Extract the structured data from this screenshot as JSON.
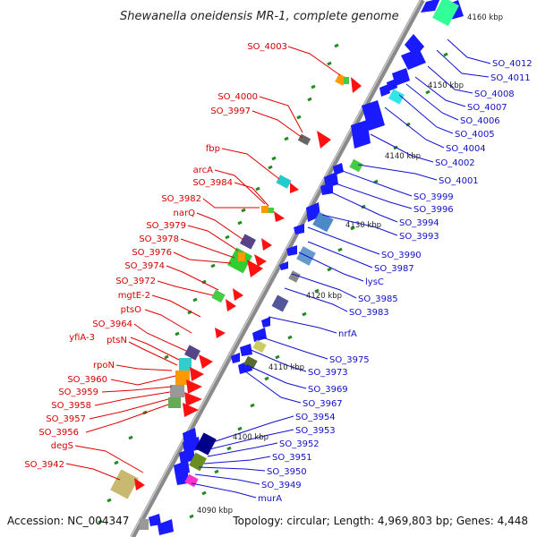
{
  "header": {
    "title": "Shewanella oneidensis MR-1, complete genome"
  },
  "footer": {
    "accession": "Accession: NC_004347",
    "summary": "Topology: circular; Length: 4,969,803 bp; Genes: 4,448"
  },
  "ticks": [
    "4160 kbp",
    "4150 kbp",
    "4140 kbp",
    "4130 kbp",
    "4120 kbp",
    "4110 kbp",
    "4100 kbp",
    "4090 kbp"
  ],
  "labels_left": [
    "SO_4003",
    "SO_4000",
    "SO_3997",
    "fbp",
    "arcA",
    "SO_3984",
    "SO_3982",
    "narQ",
    "SO_3979",
    "SO_3978",
    "SO_3976",
    "SO_3974",
    "SO_3972",
    "mgtE-2",
    "ptsO",
    "SO_3964",
    "yfiA-3",
    "ptsN",
    "rpoN",
    "SO_3960",
    "SO_3959",
    "SO_3958",
    "SO_3957",
    "SO_3956",
    "degS",
    "SO_3942"
  ],
  "labels_right": [
    "SO_4012",
    "SO_4011",
    "SO_4008",
    "SO_4007",
    "SO_4006",
    "SO_4005",
    "SO_4004",
    "SO_4002",
    "SO_4001",
    "SO_3999",
    "SO_3996",
    "SO_3994",
    "SO_3993",
    "SO_3990",
    "SO_3987",
    "lysC",
    "SO_3985",
    "SO_3983",
    "nrfA",
    "SO_3975",
    "SO_3973",
    "SO_3969",
    "SO_3967",
    "SO_3954",
    "SO_3953",
    "SO_3952",
    "SO_3951",
    "SO_3950",
    "SO_3949",
    "murA"
  ],
  "colors": {
    "forward_label": "#d40000",
    "reverse_label": "#1010c8",
    "backbone": "#8a8a8a"
  }
}
